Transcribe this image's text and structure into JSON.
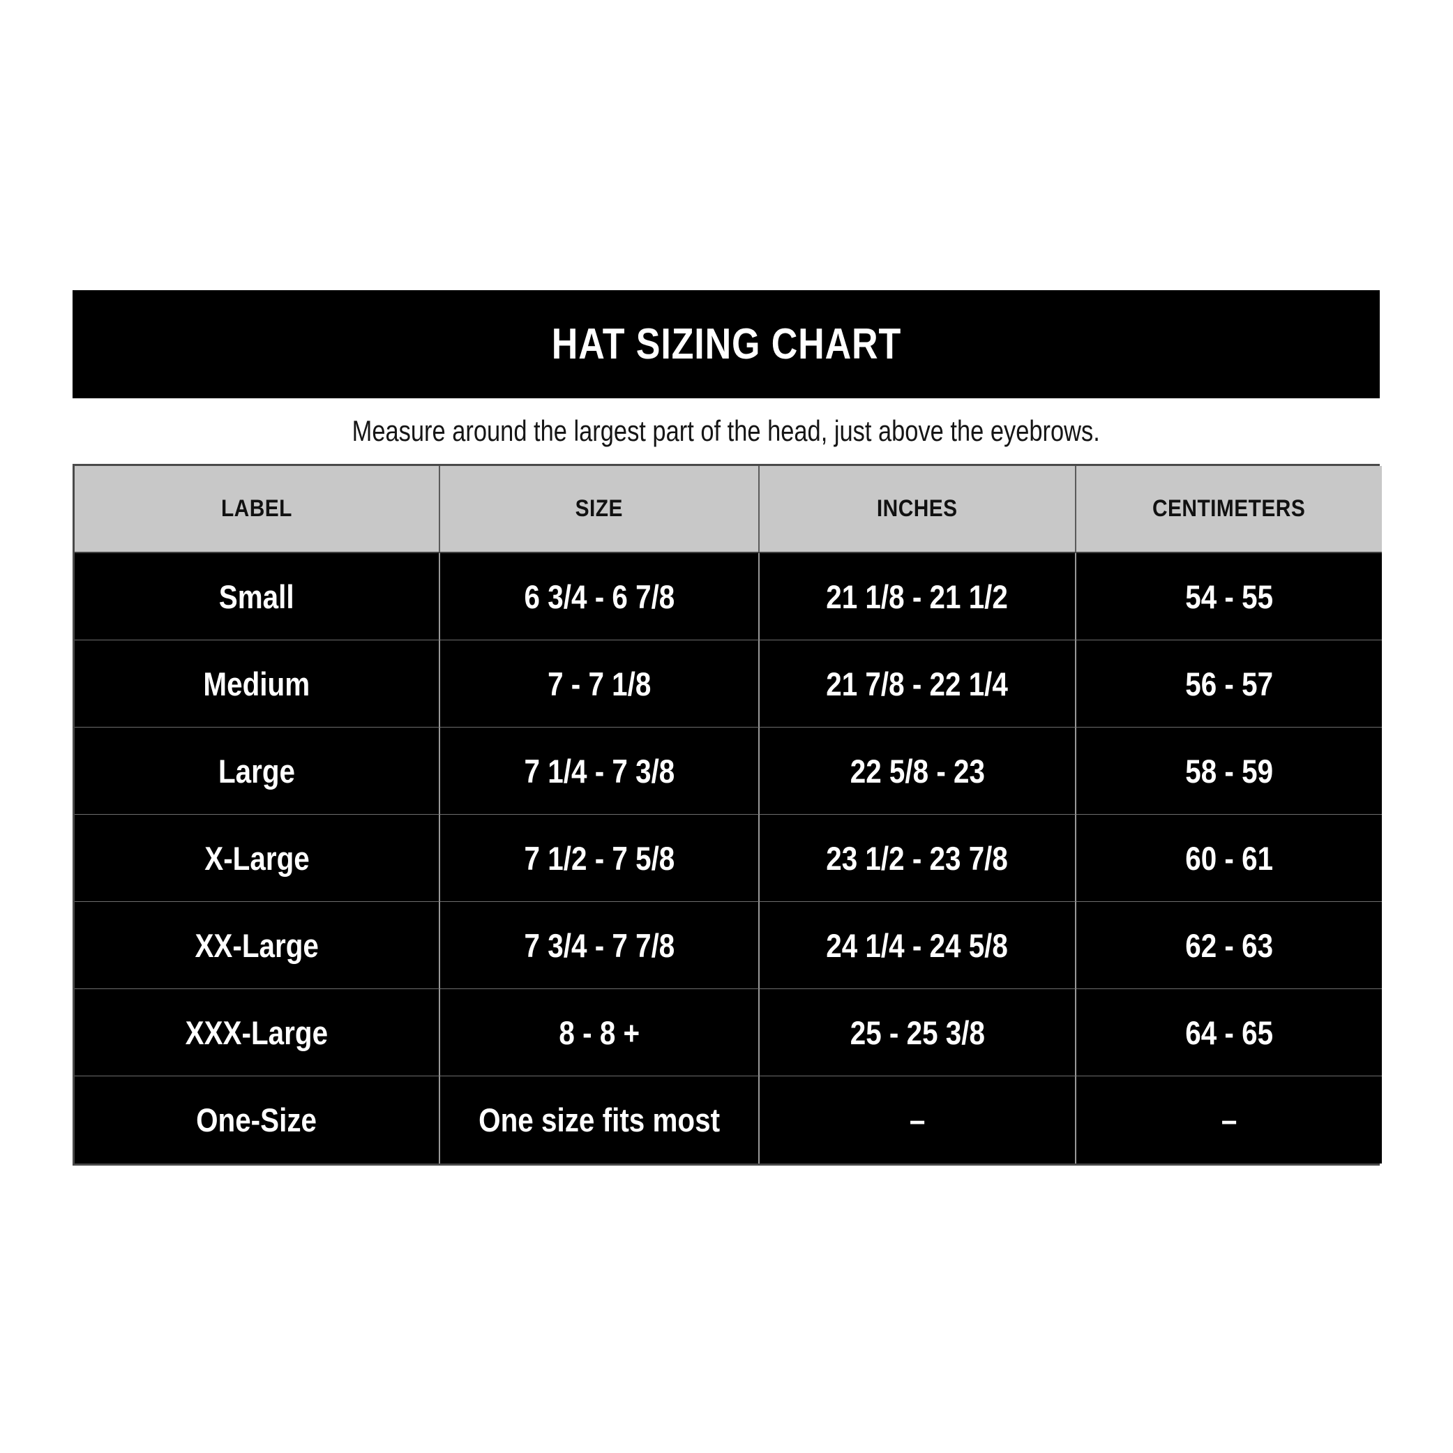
{
  "title_bar": {
    "title": "HAT SIZING CHART",
    "background": "#000000",
    "text_color": "#ffffff"
  },
  "subtitle": "Measure around the largest part of the head, just above the eyebrows.",
  "colors": {
    "header_row_bg": "#c8c8c8",
    "data_row_bg": "#000000",
    "data_row_text": "#ffffff",
    "header_text": "#111111",
    "grid_line": "#989898",
    "outer_border": "#4a4a4a"
  },
  "chart_data": {
    "type": "table",
    "title": "HAT SIZING CHART",
    "subtitle": "Measure around the largest part of the head, just above the eyebrows.",
    "columns": [
      "LABEL",
      "SIZE",
      "INCHES",
      "CENTIMETERS"
    ],
    "rows": [
      [
        "Small",
        "6 3/4 - 6 7/8",
        "21 1/8 - 21 1/2",
        "54 - 55"
      ],
      [
        "Medium",
        "7 - 7 1/8",
        "21 7/8 - 22 1/4",
        "56 - 57"
      ],
      [
        "Large",
        "7 1/4 - 7 3/8",
        "22 5/8 - 23",
        "58 - 59"
      ],
      [
        "X-Large",
        "7 1/2 - 7 5/8",
        "23 1/2 - 23 7/8",
        "60 - 61"
      ],
      [
        "XX-Large",
        "7 3/4 - 7 7/8",
        "24 1/4 - 24 5/8",
        "62 - 63"
      ],
      [
        "XXX-Large",
        "8 - 8 +",
        "25 - 25 3/8",
        "64 - 65"
      ],
      [
        "One-Size",
        "One size fits most",
        "–",
        "–"
      ]
    ]
  }
}
